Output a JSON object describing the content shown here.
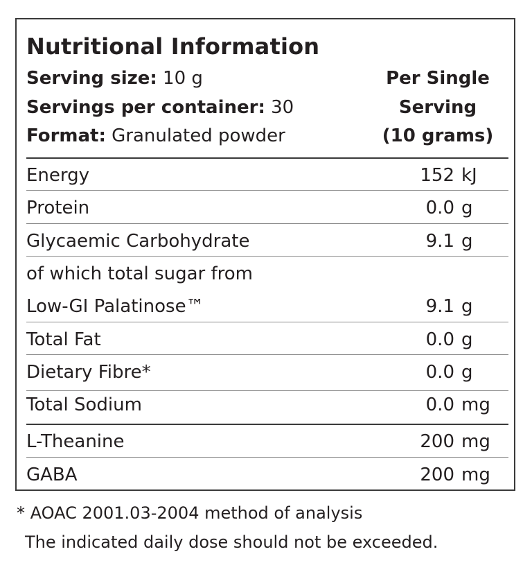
{
  "title": "Nutritional Information",
  "meta": {
    "serving_size_label": "Serving size:",
    "serving_size_value": " 10 g",
    "servings_label": "Servings per container:",
    "servings_value": " 30",
    "format_label": "Format:",
    "format_value": " Granulated powder"
  },
  "column_header": [
    "Per Single",
    "Serving",
    "(10 grams)"
  ],
  "rows": [
    {
      "label": "Energy",
      "value": "152",
      "unit": "kJ"
    },
    {
      "label": "Protein",
      "value": "0.0",
      "unit": "g"
    },
    {
      "label": "Glycaemic Carbohydrate",
      "value": "9.1",
      "unit": "g"
    },
    {
      "label": "of which total sugar from",
      "value": "",
      "unit": ""
    },
    {
      "label": "Low-GI Palatinose™",
      "value": "9.1",
      "unit": "g"
    },
    {
      "label": "Total Fat",
      "value": "0.0",
      "unit": "g"
    },
    {
      "label": "Dietary Fibre*",
      "value": "0.0",
      "unit": "g"
    },
    {
      "label": "Total Sodium",
      "value": "0.0",
      "unit": "mg"
    },
    {
      "label": "L-Theanine",
      "value": "200",
      "unit": "mg"
    },
    {
      "label": "GABA",
      "value": "200",
      "unit": "mg"
    }
  ],
  "footnotes": [
    "* AOAC 2001.03-2004 method of analysis",
    "The indicated daily dose should not be exceeded."
  ]
}
